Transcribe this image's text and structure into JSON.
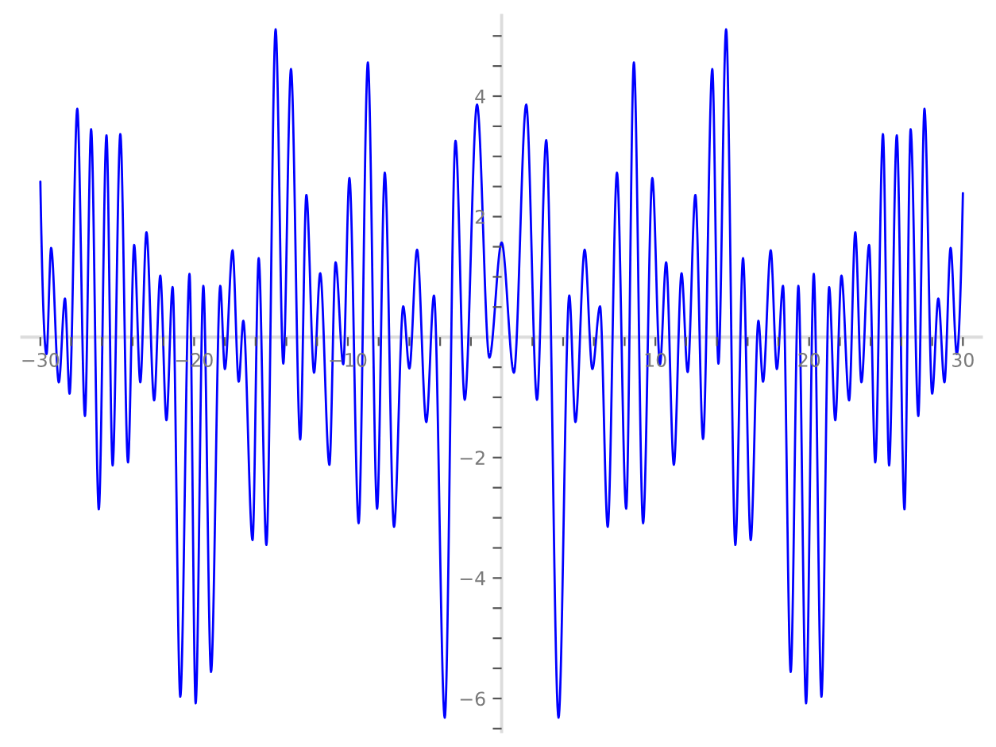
{
  "chart_data": {
    "type": "line",
    "x": [
      -30,
      -29.6,
      -29.3,
      -28.8,
      -28.4,
      -28.1,
      -27.6,
      -27.1,
      -26.7,
      -26.2,
      -25.7,
      -25.3,
      -24.8,
      -24.3,
      -23.9,
      -23.5,
      -23.1,
      -22.6,
      -22.2,
      -21.8,
      -21.4,
      -20.9,
      -20.3,
      -19.9,
      -19.4,
      -18.9,
      -18.3,
      -18.0,
      -17.5,
      -17.1,
      -16.8,
      -16.2,
      -15.8,
      -15.3,
      -14.7,
      -14.2,
      -13.7,
      -13.1,
      -12.7,
      -12.2,
      -11.8,
      -11.2,
      -10.8,
      -10.3,
      -9.9,
      -9.3,
      -8.7,
      -8.1,
      -7.6,
      -7.0,
      -6.4,
      -6.0,
      -5.5,
      -4.9,
      -4.4,
      -3.7,
      -3.0,
      -2.4,
      -1.6,
      -0.8,
      0,
      0.8,
      1.6,
      2.3,
      2.9,
      3.7,
      4.4,
      4.8,
      5.4,
      5.9,
      6.4,
      6.9,
      7.5,
      8.1,
      8.6,
      9.2,
      9.8,
      10.3,
      10.7,
      11.2,
      11.7,
      12.1,
      12.6,
      13.1,
      13.7,
      14.1,
      14.6,
      15.2,
      15.7,
      16.2,
      16.7,
      17.0,
      17.5,
      17.9,
      18.3,
      18.8,
      19.3,
      19.8,
      20.3,
      20.8,
      21.3,
      21.7,
      22.1,
      22.6,
      23.0,
      23.4,
      23.9,
      24.3,
      24.8,
      25.2,
      25.7,
      26.2,
      26.6,
      27.1,
      27.5,
      28.0,
      28.4,
      28.8,
      29.2,
      29.6,
      30
    ],
    "values": [
      2.58,
      -0.28,
      1.48,
      -0.75,
      0.64,
      -0.94,
      3.79,
      -1.31,
      3.45,
      -2.86,
      3.35,
      -2.13,
      3.37,
      -2.08,
      1.53,
      -0.75,
      1.74,
      -1.05,
      1.02,
      -1.38,
      0.83,
      -5.97,
      1.05,
      -6.08,
      0.85,
      -5.56,
      0.85,
      -0.53,
      1.44,
      -0.74,
      0.27,
      -3.37,
      1.31,
      -3.45,
      5.11,
      -0.44,
      4.45,
      -1.7,
      2.36,
      -0.59,
      1.06,
      -2.12,
      1.24,
      -0.45,
      2.64,
      -3.09,
      4.56,
      -2.85,
      2.73,
      -3.15,
      0.51,
      -0.52,
      1.45,
      -1.41,
      0.69,
      -6.32,
      3.26,
      -1.04,
      3.86,
      -0.34,
      1.57,
      -0.59,
      3.86,
      -1.04,
      3.27,
      -6.32,
      0.69,
      -1.41,
      1.45,
      -0.53,
      0.51,
      -3.15,
      2.73,
      -2.85,
      4.56,
      -3.09,
      2.64,
      -0.45,
      1.24,
      -2.12,
      1.06,
      -0.58,
      2.36,
      -1.69,
      4.45,
      -0.44,
      5.11,
      -3.45,
      1.31,
      -3.37,
      0.27,
      -0.74,
      1.44,
      -0.53,
      0.85,
      -5.56,
      0.85,
      -6.08,
      1.05,
      -5.97,
      0.83,
      -1.38,
      1.02,
      -1.05,
      1.74,
      -0.75,
      1.53,
      -2.08,
      3.37,
      -2.13,
      3.35,
      -2.86,
      3.45,
      -1.31,
      3.79,
      -0.94,
      0.64,
      -0.75,
      1.48,
      -0.28,
      2.39
    ],
    "color": "#0000ff",
    "line_style": "solid",
    "xlim": [
      -31.2,
      31.2
    ],
    "ylim": [
      -6.55,
      5.34
    ],
    "xticks": [
      -30,
      {
        "value": -28,
        "label": null
      },
      {
        "value": -26,
        "label": null
      },
      {
        "value": -24,
        "label": null
      },
      {
        "value": -22,
        "label": null
      },
      -20,
      {
        "value": -18,
        "label": null
      },
      {
        "value": -16,
        "label": null
      },
      {
        "value": -14,
        "label": null
      },
      {
        "value": -12,
        "label": null
      },
      -10,
      {
        "value": -8,
        "label": null
      },
      {
        "value": -6,
        "label": null
      },
      {
        "value": -4,
        "label": null
      },
      {
        "value": -2,
        "label": null
      },
      {
        "value": 2,
        "label": null
      },
      {
        "value": 4,
        "label": null
      },
      {
        "value": 6,
        "label": null
      },
      {
        "value": 8,
        "label": null
      },
      10,
      {
        "value": 12,
        "label": null
      },
      {
        "value": 14,
        "label": null
      },
      {
        "value": 16,
        "label": null
      },
      {
        "value": 18,
        "label": null
      },
      20,
      {
        "value": 22,
        "label": null
      },
      {
        "value": 24,
        "label": null
      },
      {
        "value": 26,
        "label": null
      },
      {
        "value": 28,
        "label": null
      },
      30
    ],
    "yticks": [
      {
        "value": -6.5,
        "label": null
      },
      -6,
      {
        "value": -5.5,
        "label": null
      },
      {
        "value": -5,
        "label": null
      },
      {
        "value": -4.5,
        "label": null
      },
      -4,
      {
        "value": -3.5,
        "label": null
      },
      {
        "value": -3,
        "label": null
      },
      {
        "value": -2.5,
        "label": null
      },
      -2,
      {
        "value": -1.5,
        "label": null
      },
      {
        "value": -1,
        "label": null
      },
      {
        "value": -0.5,
        "label": null
      },
      {
        "value": 0.5,
        "label": null
      },
      {
        "value": 1,
        "label": null
      },
      {
        "value": 1.5,
        "label": null
      },
      2,
      {
        "value": 2.5,
        "label": null
      },
      {
        "value": 3,
        "label": null
      },
      {
        "value": 3.5,
        "label": null
      },
      4,
      {
        "value": 4.5,
        "label": null
      },
      {
        "value": 5,
        "label": null
      }
    ]
  }
}
